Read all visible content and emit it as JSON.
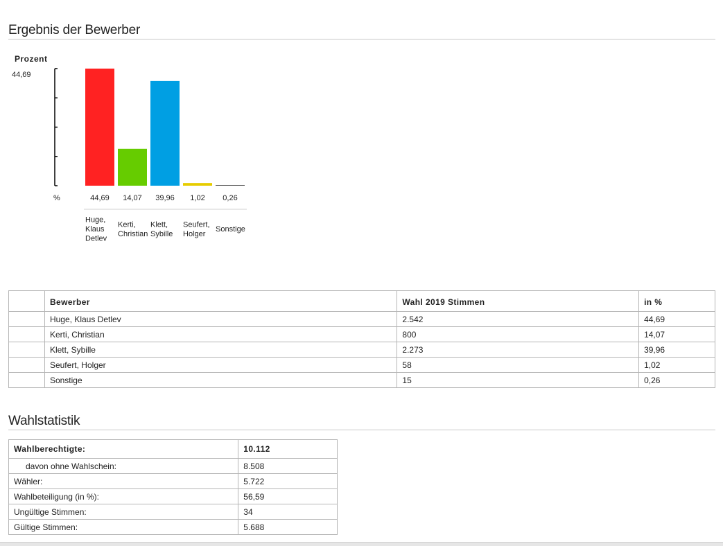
{
  "results_section": {
    "title": "Ergebnis der Bewerber"
  },
  "chart_data": {
    "type": "bar",
    "ylabel": "Prozent",
    "ymax_label": "44,69",
    "unit_label": "%",
    "ylim": [
      0,
      44.69
    ],
    "categories": [
      {
        "label": [
          "Huge,",
          "Klaus",
          "Detlev"
        ],
        "value": 44.69,
        "value_label": "44,69",
        "color": "#ff2222"
      },
      {
        "label": [
          "Kerti,",
          "Christian"
        ],
        "value": 14.07,
        "value_label": "14,07",
        "color": "#66cc00"
      },
      {
        "label": [
          "Klett,",
          "Sybille"
        ],
        "value": 39.96,
        "value_label": "39,96",
        "color": "#009fe3"
      },
      {
        "label": [
          "Seufert,",
          "Holger"
        ],
        "value": 1.02,
        "value_label": "1,02",
        "color": "#e6cc00"
      },
      {
        "label": [
          "Sonstige"
        ],
        "value": 0.26,
        "value_label": "0,26",
        "color": "#555555"
      }
    ]
  },
  "results_table": {
    "headers": [
      "",
      "Bewerber",
      "Wahl 2019 Stimmen",
      "in %"
    ],
    "rows": [
      {
        "name": "Huge, Klaus Detlev",
        "votes": "2.542",
        "pct": "44,69"
      },
      {
        "name": "Kerti, Christian",
        "votes": "800",
        "pct": "14,07"
      },
      {
        "name": "Klett, Sybille",
        "votes": "2.273",
        "pct": "39,96"
      },
      {
        "name": "Seufert, Holger",
        "votes": "58",
        "pct": "1,02"
      },
      {
        "name": "Sonstige",
        "votes": "15",
        "pct": "0,26"
      }
    ]
  },
  "stats_section": {
    "title": "Wahlstatistik"
  },
  "stats_table": {
    "rows": [
      {
        "label": "Wahlberechtigte:",
        "value": "10.112"
      },
      {
        "label": "davon ohne Wahlschein:",
        "value": "8.508"
      },
      {
        "label": "Wähler:",
        "value": "5.722"
      },
      {
        "label": "Wahlbeteiligung (in %):",
        "value": "56,59"
      },
      {
        "label": "Ungültige Stimmen:",
        "value": "34"
      },
      {
        "label": "Gültige Stimmen:",
        "value": "5.688"
      }
    ]
  }
}
